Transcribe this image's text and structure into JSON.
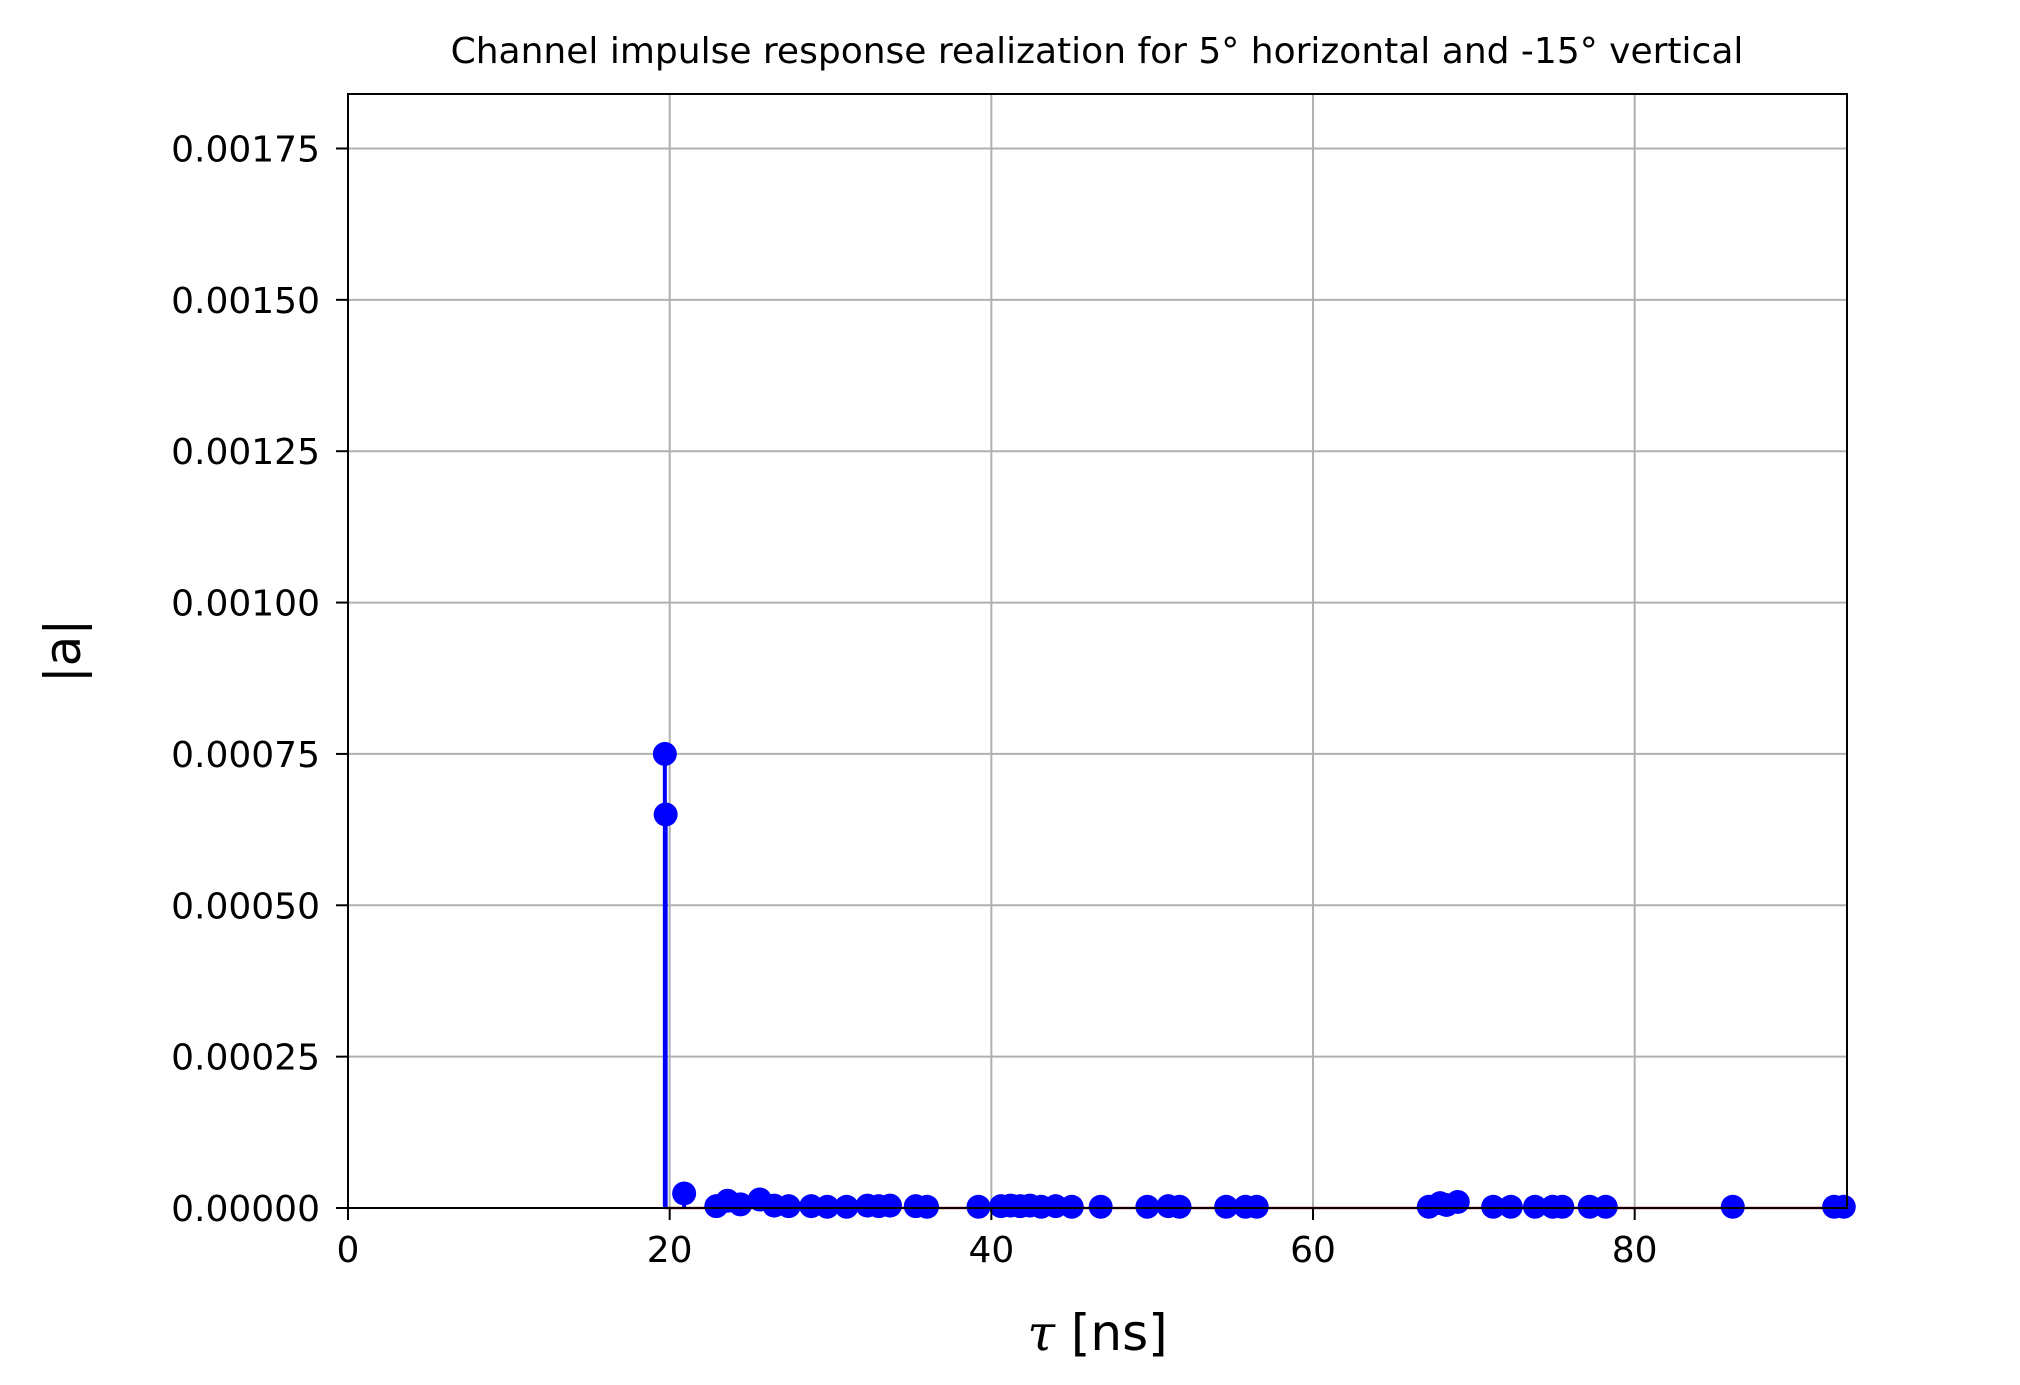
{
  "colors": {
    "stem": "#0000ff",
    "baseline": "#d62728",
    "grid": "#b0b0b0",
    "axes": "#000000"
  },
  "chart_data": {
    "type": "stem",
    "title": "Channel impulse response realization for 5° horizontal and -15° vertical",
    "xlabel_symbol": "τ",
    "xlabel_unit": " [ns]",
    "ylabel": "|a|",
    "xlim": [
      0,
      93.2
    ],
    "ylim": [
      0,
      0.00184
    ],
    "grid": true,
    "xticks": [
      0,
      20,
      40,
      60,
      80
    ],
    "xtick_labels": [
      "0",
      "20",
      "40",
      "60",
      "80"
    ],
    "yticks": [
      0,
      0.00025,
      0.0005,
      0.00075,
      0.001,
      0.00125,
      0.0015,
      0.00175
    ],
    "ytick_labels": [
      "0.00000",
      "0.00025",
      "0.00050",
      "0.00075",
      "0.00100",
      "0.00125",
      "0.00150",
      "0.00175"
    ],
    "series": [
      {
        "name": "|a|",
        "x": [
          19.7,
          19.75,
          20.9,
          22.9,
          23.6,
          24.4,
          25.6,
          26.5,
          27.4,
          28.8,
          29.8,
          31.0,
          32.3,
          33.0,
          33.7,
          35.3,
          36.0,
          39.2,
          40.6,
          41.2,
          41.8,
          42.4,
          43.1,
          44.0,
          45.0,
          46.8,
          49.7,
          51.0,
          51.7,
          54.6,
          55.8,
          56.5,
          67.2,
          67.9,
          68.3,
          69.0,
          71.2,
          72.3,
          73.8,
          74.9,
          75.5,
          77.2,
          78.2,
          86.1,
          92.4,
          93.0
        ],
        "y": [
          0.00075,
          0.00065,
          2.4e-05,
          3e-06,
          1.2e-05,
          6e-06,
          1.4e-05,
          4e-06,
          3e-06,
          3e-06,
          2e-06,
          2e-06,
          4e-06,
          3e-06,
          4e-06,
          3e-06,
          2e-06,
          2e-06,
          3e-06,
          4e-06,
          3e-06,
          4e-06,
          2e-06,
          3e-06,
          2e-06,
          2e-06,
          2e-06,
          3e-06,
          2e-06,
          2e-06,
          2e-06,
          2e-06,
          2e-06,
          8e-06,
          5e-06,
          1e-05,
          2e-06,
          2e-06,
          2e-06,
          2e-06,
          2e-06,
          2e-06,
          2e-06,
          2e-06,
          2e-06,
          2e-06
        ]
      }
    ]
  }
}
